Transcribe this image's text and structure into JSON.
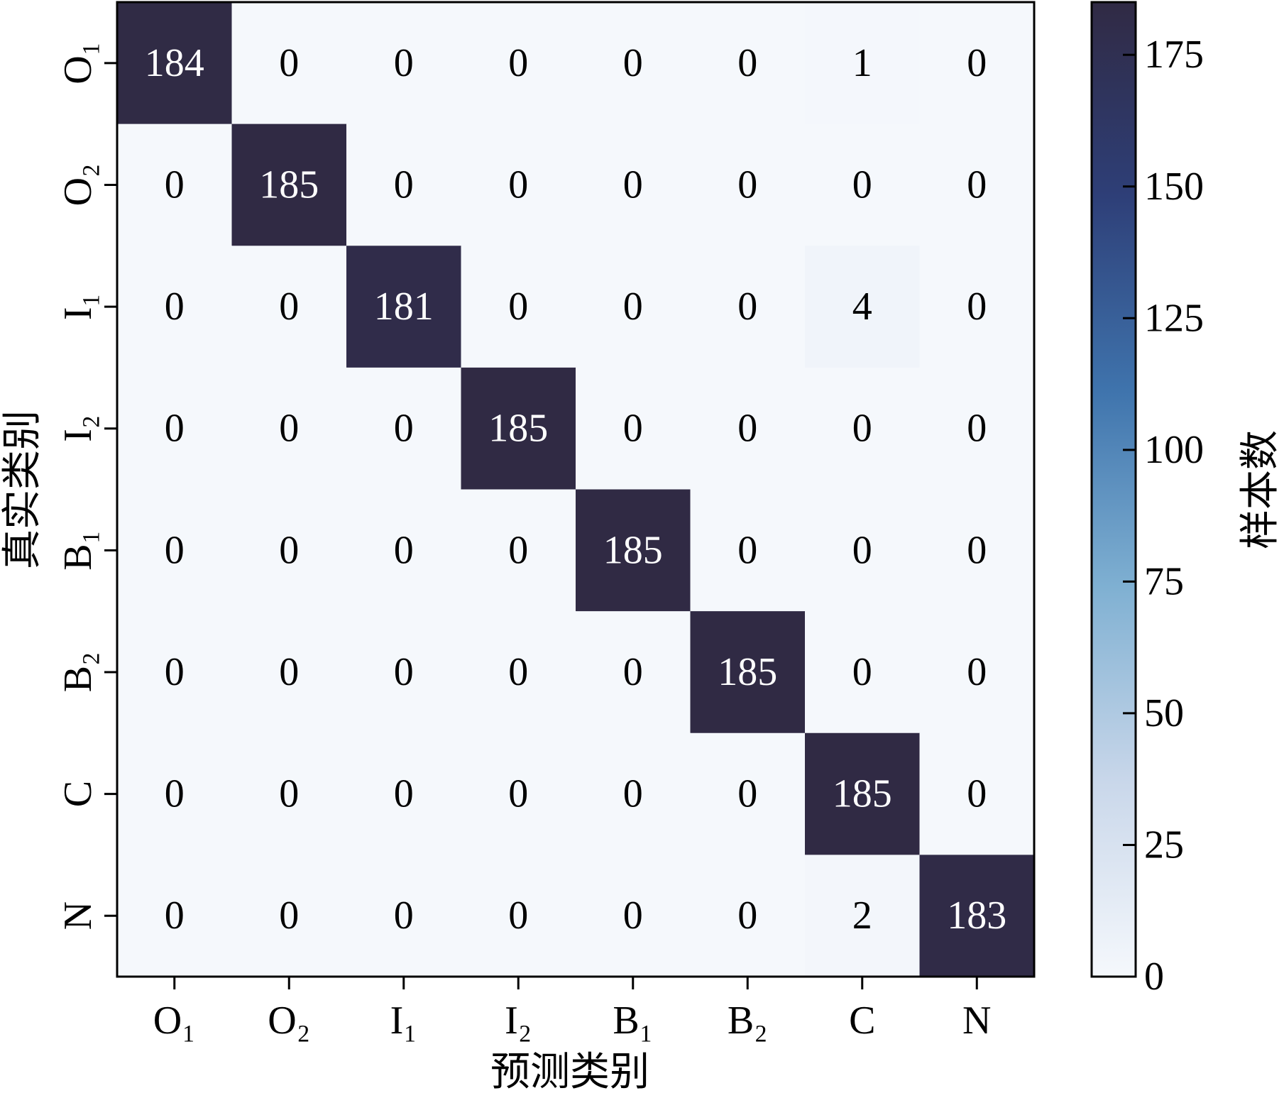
{
  "chart_data": {
    "type": "heatmap",
    "x_label": "预测类别",
    "y_label": "真实类别",
    "x_categories": [
      "O₁",
      "O₂",
      "I₁",
      "I₂",
      "B₁",
      "B₂",
      "C",
      "N"
    ],
    "y_categories": [
      "O₁",
      "O₂",
      "I₁",
      "I₂",
      "B₁",
      "B₂",
      "C",
      "N"
    ],
    "matrix": [
      [
        184,
        0,
        0,
        0,
        0,
        0,
        1,
        0
      ],
      [
        0,
        185,
        0,
        0,
        0,
        0,
        0,
        0
      ],
      [
        0,
        0,
        181,
        0,
        0,
        0,
        4,
        0
      ],
      [
        0,
        0,
        0,
        185,
        0,
        0,
        0,
        0
      ],
      [
        0,
        0,
        0,
        0,
        185,
        0,
        0,
        0
      ],
      [
        0,
        0,
        0,
        0,
        0,
        185,
        0,
        0
      ],
      [
        0,
        0,
        0,
        0,
        0,
        0,
        185,
        0
      ],
      [
        0,
        0,
        0,
        0,
        0,
        0,
        2,
        183
      ]
    ],
    "colormap": [
      "#f5f8fc",
      "#c9d7ea",
      "#7fb0d2",
      "#3f74ad",
      "#2e3f78",
      "#302a44"
    ],
    "colorbar": {
      "label": "样本数",
      "clim": [
        0,
        185
      ],
      "ticks": [
        0,
        25,
        50,
        75,
        100,
        125,
        150,
        175
      ]
    }
  }
}
